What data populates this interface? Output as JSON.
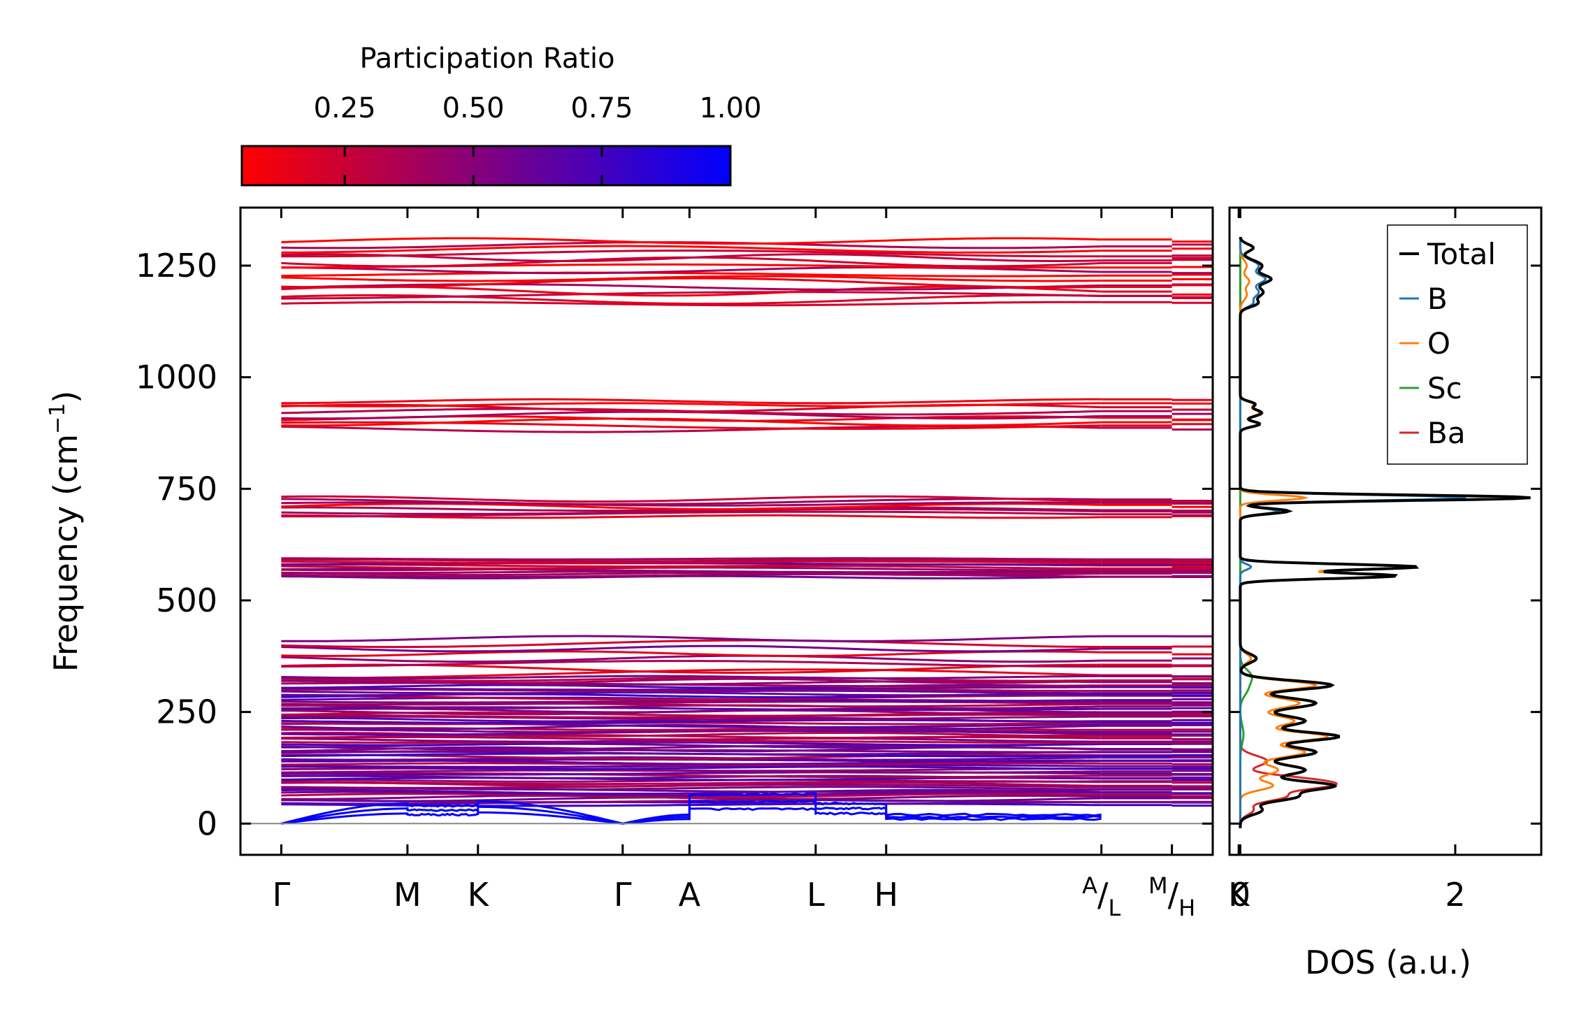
{
  "chart_data": [
    {
      "type": "line",
      "subtype": "phonon-band-structure",
      "ylabel": "Frequency (cm⁻¹)",
      "ylabel_main": "Frequency (cm",
      "ylabel_sup": "−1",
      "ylabel_close": ")",
      "ylim": [
        -70,
        1380
      ],
      "yticks": [
        0,
        250,
        500,
        750,
        1000,
        1250
      ],
      "ytick_labels": [
        "0",
        "250",
        "500",
        "750",
        "1000",
        "1250"
      ],
      "kpath_positions": [
        0,
        1.7,
        2.65,
        4.6,
        5.5,
        7.2,
        8.15,
        11.05,
        12.0,
        12.9
      ],
      "kpath_labels": [
        "Γ",
        "M",
        "K",
        "Γ",
        "A",
        "L",
        "H",
        "A/L",
        "M/H",
        "K"
      ],
      "kpath_label_parts": {
        "al": {
          "sup": "A",
          "slash": "/",
          "sub": "L"
        },
        "mh": {
          "sup": "M",
          "slash": "/",
          "sub": "H"
        }
      },
      "xlim": [
        -0.55,
        12.55
      ],
      "colorbar": {
        "title": "Participation Ratio",
        "range": [
          0.05,
          1.0
        ],
        "ticks": [
          0.25,
          0.5,
          0.75,
          1.0
        ],
        "tick_labels": [
          "0.25",
          "0.50",
          "0.75",
          "1.00"
        ],
        "colors": [
          "#ff0000",
          "#0000ff"
        ]
      },
      "band_groups": [
        {
          "range": [
            1160,
            1310
          ],
          "n": 16,
          "pr": 0.15
        },
        {
          "range": [
            880,
            950
          ],
          "n": 9,
          "pr": 0.18
        },
        {
          "range": [
            685,
            730
          ],
          "n": 8,
          "pr": 0.2
        },
        {
          "range": [
            550,
            595
          ],
          "n": 12,
          "pr": 0.45
        },
        {
          "range": [
            330,
            420
          ],
          "n": 8,
          "pr": 0.35
        },
        {
          "range": [
            40,
            330
          ],
          "n": 70,
          "pr": 0.55
        }
      ],
      "acoustic": {
        "max": [
          45,
          40,
          50,
          20,
          65,
          45,
          20
        ],
        "pr": 0.98
      }
    },
    {
      "type": "line",
      "subtype": "density-of-states",
      "xlabel": "DOS (a.u.)",
      "xlim": [
        -0.1,
        2.8
      ],
      "xticks": [
        0,
        2
      ],
      "xtick_labels": [
        "0",
        "2"
      ],
      "legend_position": "top-right",
      "series": [
        {
          "name": "Total",
          "color": "#000000",
          "peaks": [
            [
              1250,
              0.2,
              12
            ],
            [
              1220,
              0.27,
              10
            ],
            [
              1190,
              0.21,
              12
            ],
            [
              1165,
              0.14,
              8
            ],
            [
              1290,
              0.12,
              8
            ],
            [
              920,
              0.2,
              8
            ],
            [
              895,
              0.18,
              6
            ],
            [
              940,
              0.13,
              6
            ],
            [
              730,
              2.7,
              6
            ],
            [
              700,
              0.45,
              6
            ],
            [
              575,
              1.65,
              6
            ],
            [
              555,
              1.45,
              6
            ],
            [
              370,
              0.15,
              10
            ],
            [
              310,
              0.85,
              10
            ],
            [
              270,
              0.7,
              12
            ],
            [
              230,
              0.6,
              12
            ],
            [
              195,
              0.9,
              10
            ],
            [
              160,
              0.7,
              12
            ],
            [
              120,
              0.6,
              12
            ],
            [
              85,
              0.85,
              10
            ],
            [
              60,
              0.5,
              10
            ],
            [
              30,
              0.2,
              10
            ]
          ]
        },
        {
          "name": "B",
          "color": "#1f77b4",
          "peaks": [
            [
              1250,
              0.17,
              12
            ],
            [
              1220,
              0.22,
              10
            ],
            [
              1190,
              0.17,
              12
            ],
            [
              1165,
              0.1,
              8
            ],
            [
              730,
              2.1,
              6
            ],
            [
              700,
              0.35,
              6
            ],
            [
              575,
              0.1,
              6
            ]
          ]
        },
        {
          "name": "O",
          "color": "#ff7f0e",
          "peaks": [
            [
              1250,
              0.06,
              12
            ],
            [
              1215,
              0.08,
              10
            ],
            [
              1185,
              0.06,
              12
            ],
            [
              920,
              0.18,
              8
            ],
            [
              895,
              0.16,
              6
            ],
            [
              940,
              0.12,
              6
            ],
            [
              730,
              0.6,
              6
            ],
            [
              575,
              1.55,
              6
            ],
            [
              555,
              1.35,
              6
            ],
            [
              370,
              0.1,
              10
            ],
            [
              310,
              0.7,
              10
            ],
            [
              270,
              0.55,
              12
            ],
            [
              230,
              0.5,
              12
            ],
            [
              195,
              0.8,
              10
            ],
            [
              160,
              0.6,
              12
            ],
            [
              120,
              0.35,
              12
            ],
            [
              85,
              0.3,
              10
            ]
          ]
        },
        {
          "name": "Sc",
          "color": "#2ca02c",
          "peaks": [
            [
              330,
              0.1,
              15
            ],
            [
              300,
              0.06,
              15
            ],
            [
              200,
              0.03,
              20
            ]
          ]
        },
        {
          "name": "Ba",
          "color": "#d62728",
          "peaks": [
            [
              140,
              0.25,
              12
            ],
            [
              100,
              0.45,
              10
            ],
            [
              85,
              0.7,
              10
            ],
            [
              60,
              0.4,
              10
            ],
            [
              30,
              0.12,
              10
            ]
          ]
        }
      ]
    }
  ]
}
